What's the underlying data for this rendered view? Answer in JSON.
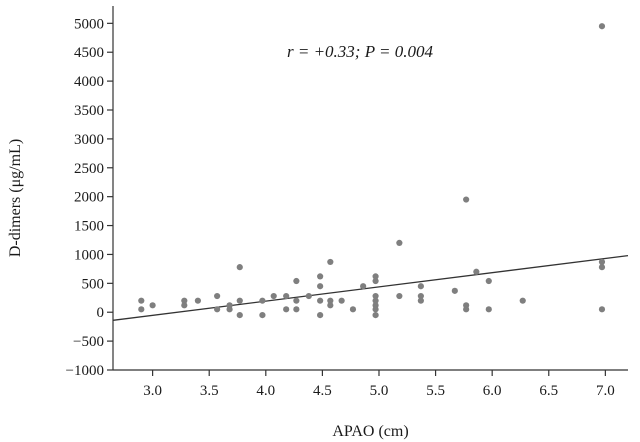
{
  "chart_data": {
    "type": "scatter",
    "title": "",
    "xlabel": "APAO (cm)",
    "ylabel": "D-dimers (μg/mL)",
    "xlim": [
      2.65,
      7.2
    ],
    "ylim": [
      -1000,
      5300
    ],
    "xticks": [
      3.0,
      3.5,
      4.0,
      4.5,
      5.0,
      5.5,
      6.0,
      6.5,
      7.0
    ],
    "xtick_labels": [
      "3.0",
      "3.5",
      "4.0",
      "4.5",
      "5.0",
      "5.5",
      "6.0",
      "6.5",
      "7.0"
    ],
    "yticks": [
      -1000,
      -500,
      0,
      500,
      1000,
      1500,
      2000,
      2500,
      3000,
      3500,
      4000,
      4500,
      5000
    ],
    "ytick_labels": [
      "−1000",
      "−500",
      "0",
      "500",
      "1000",
      "1500",
      "2000",
      "2500",
      "3000",
      "3500",
      "4000",
      "4500",
      "5000"
    ],
    "annotation": "r = +0.33; P = 0.004",
    "grid": false,
    "marker_color": "#7f7f7f",
    "line_color": "#333333",
    "points": [
      {
        "x": 2.9,
        "y": 200
      },
      {
        "x": 2.9,
        "y": 50
      },
      {
        "x": 3.0,
        "y": 120
      },
      {
        "x": 3.28,
        "y": 200
      },
      {
        "x": 3.28,
        "y": 120
      },
      {
        "x": 3.4,
        "y": 200
      },
      {
        "x": 3.57,
        "y": 280
      },
      {
        "x": 3.57,
        "y": 50
      },
      {
        "x": 3.68,
        "y": 120
      },
      {
        "x": 3.68,
        "y": 50
      },
      {
        "x": 3.77,
        "y": 780
      },
      {
        "x": 3.77,
        "y": 200
      },
      {
        "x": 3.77,
        "y": -50
      },
      {
        "x": 3.97,
        "y": 200
      },
      {
        "x": 3.97,
        "y": -50
      },
      {
        "x": 4.07,
        "y": 280
      },
      {
        "x": 4.18,
        "y": 280
      },
      {
        "x": 4.18,
        "y": 50
      },
      {
        "x": 4.27,
        "y": 540
      },
      {
        "x": 4.27,
        "y": 200
      },
      {
        "x": 4.27,
        "y": 50
      },
      {
        "x": 4.38,
        "y": 280
      },
      {
        "x": 4.48,
        "y": 620
      },
      {
        "x": 4.48,
        "y": 450
      },
      {
        "x": 4.48,
        "y": 200
      },
      {
        "x": 4.48,
        "y": -50
      },
      {
        "x": 4.57,
        "y": 870
      },
      {
        "x": 4.57,
        "y": 200
      },
      {
        "x": 4.57,
        "y": 120
      },
      {
        "x": 4.67,
        "y": 200
      },
      {
        "x": 4.77,
        "y": 50
      },
      {
        "x": 4.86,
        "y": 450
      },
      {
        "x": 4.97,
        "y": 620
      },
      {
        "x": 4.97,
        "y": 540
      },
      {
        "x": 4.97,
        "y": 280
      },
      {
        "x": 4.97,
        "y": 200
      },
      {
        "x": 4.97,
        "y": 120
      },
      {
        "x": 4.97,
        "y": 50
      },
      {
        "x": 4.97,
        "y": -50
      },
      {
        "x": 5.18,
        "y": 1200
      },
      {
        "x": 5.18,
        "y": 280
      },
      {
        "x": 5.37,
        "y": 450
      },
      {
        "x": 5.37,
        "y": 280
      },
      {
        "x": 5.37,
        "y": 200
      },
      {
        "x": 5.67,
        "y": 370
      },
      {
        "x": 5.77,
        "y": 1950
      },
      {
        "x": 5.77,
        "y": 120
      },
      {
        "x": 5.77,
        "y": 50
      },
      {
        "x": 5.86,
        "y": 700
      },
      {
        "x": 5.97,
        "y": 540
      },
      {
        "x": 5.97,
        "y": 50
      },
      {
        "x": 6.27,
        "y": 200
      },
      {
        "x": 6.97,
        "y": 4950
      },
      {
        "x": 6.97,
        "y": 870
      },
      {
        "x": 6.97,
        "y": 780
      },
      {
        "x": 6.97,
        "y": 50
      }
    ],
    "trendline": [
      {
        "x": 2.65,
        "y": -140
      },
      {
        "x": 7.2,
        "y": 980
      }
    ]
  }
}
